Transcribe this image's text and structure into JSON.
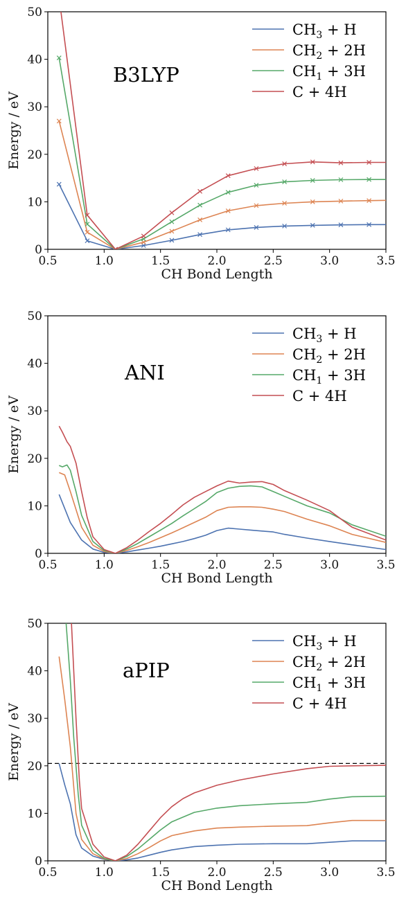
{
  "colors": {
    "blue": "#4c72b0",
    "orange": "#dd8452",
    "green": "#55a868",
    "red": "#c44e52"
  },
  "chart_data": [
    {
      "type": "line",
      "title": "B3LYP",
      "xlabel": "CH Bond Length",
      "ylabel": "Energy / eV",
      "xlim": [
        0.5,
        3.5
      ],
      "ylim": [
        0,
        50
      ],
      "xticks": [
        "0.5",
        "1.0",
        "1.5",
        "2.0",
        "2.5",
        "3.0",
        "3.5"
      ],
      "yticks": [
        "0",
        "10",
        "20",
        "30",
        "40",
        "50"
      ],
      "legend_position": "top-right",
      "markers": "x",
      "series": [
        {
          "name": "CH3 + H",
          "color": "#4c72b0",
          "x": [
            0.6,
            0.85,
            1.1,
            1.35,
            1.6,
            1.85,
            2.1,
            2.35,
            2.6,
            2.85,
            3.1,
            3.35,
            3.5
          ],
          "y": [
            13.7,
            1.8,
            0,
            0.8,
            1.9,
            3.1,
            4.1,
            4.6,
            4.9,
            5.05,
            5.15,
            5.2,
            5.2
          ]
        },
        {
          "name": "CH2 + 2H",
          "color": "#dd8452",
          "x": [
            0.6,
            0.85,
            1.1,
            1.35,
            1.6,
            1.85,
            2.1,
            2.35,
            2.6,
            2.85,
            3.1,
            3.35,
            3.5
          ],
          "y": [
            27.0,
            3.6,
            0,
            1.5,
            3.8,
            6.2,
            8.1,
            9.2,
            9.7,
            10.0,
            10.15,
            10.25,
            10.3
          ]
        },
        {
          "name": "CH1 + 3H",
          "color": "#55a868",
          "x": [
            0.6,
            0.85,
            1.1,
            1.35,
            1.6,
            1.85,
            2.1,
            2.35,
            2.6,
            2.85,
            3.1,
            3.35,
            3.5
          ],
          "y": [
            40.3,
            5.3,
            0,
            2.2,
            5.8,
            9.3,
            12.0,
            13.5,
            14.2,
            14.5,
            14.65,
            14.7,
            14.7
          ]
        },
        {
          "name": "C + 4H",
          "color": "#c44e52",
          "x": [
            0.6,
            0.85,
            1.1,
            1.35,
            1.6,
            1.85,
            2.1,
            2.35,
            2.6,
            2.85,
            3.1,
            3.35,
            3.5
          ],
          "y": [
            53.0,
            7.2,
            0,
            2.8,
            7.7,
            12.2,
            15.5,
            17.0,
            18.0,
            18.4,
            18.2,
            18.3,
            18.3
          ]
        }
      ]
    },
    {
      "type": "line",
      "title": "ANI",
      "xlabel": "CH Bond Length",
      "ylabel": "Energy / eV",
      "xlim": [
        0.5,
        3.5
      ],
      "ylim": [
        0,
        50
      ],
      "xticks": [
        "0.5",
        "1.0",
        "1.5",
        "2.0",
        "2.5",
        "3.0",
        "3.5"
      ],
      "yticks": [
        "0",
        "10",
        "20",
        "30",
        "40",
        "50"
      ],
      "legend_position": "top-right",
      "series": [
        {
          "name": "CH3 + H",
          "color": "#4c72b0",
          "x": [
            0.6,
            0.7,
            0.8,
            0.9,
            1.0,
            1.1,
            1.2,
            1.3,
            1.4,
            1.5,
            1.6,
            1.7,
            1.8,
            1.9,
            2.0,
            2.1,
            2.2,
            2.3,
            2.4,
            2.5,
            2.6,
            2.8,
            3.0,
            3.2,
            3.5
          ],
          "y": [
            12.4,
            6.5,
            2.8,
            0.9,
            0.2,
            0,
            0.3,
            0.7,
            1.1,
            1.5,
            2.0,
            2.5,
            3.1,
            3.8,
            4.8,
            5.3,
            5.1,
            4.9,
            4.7,
            4.5,
            4.0,
            3.2,
            2.5,
            1.8,
            0.8
          ]
        },
        {
          "name": "CH2 + 2H",
          "color": "#dd8452",
          "x": [
            0.6,
            0.65,
            0.7,
            0.8,
            0.9,
            1.0,
            1.1,
            1.2,
            1.3,
            1.4,
            1.5,
            1.6,
            1.7,
            1.8,
            1.9,
            2.0,
            2.1,
            2.2,
            2.3,
            2.4,
            2.5,
            2.6,
            2.8,
            3.0,
            3.2,
            3.5
          ],
          "y": [
            17.0,
            16.5,
            13.0,
            5.5,
            1.7,
            0.4,
            0,
            0.6,
            1.4,
            2.3,
            3.3,
            4.3,
            5.4,
            6.5,
            7.6,
            9.0,
            9.7,
            9.8,
            9.8,
            9.7,
            9.3,
            8.8,
            7.2,
            5.8,
            4.0,
            2.3
          ]
        },
        {
          "name": "CH1 + 3H",
          "color": "#55a868",
          "x": [
            0.6,
            0.63,
            0.67,
            0.7,
            0.75,
            0.8,
            0.9,
            1.0,
            1.1,
            1.2,
            1.3,
            1.4,
            1.5,
            1.6,
            1.7,
            1.8,
            1.9,
            2.0,
            2.1,
            2.2,
            2.3,
            2.4,
            2.5,
            2.6,
            2.8,
            3.0,
            3.2,
            3.5
          ],
          "y": [
            18.5,
            18.2,
            18.6,
            17.5,
            13.0,
            8.0,
            2.5,
            0.6,
            0,
            0.9,
            2.1,
            3.5,
            4.9,
            6.3,
            7.9,
            9.4,
            10.9,
            12.8,
            13.7,
            14.1,
            14.2,
            14.0,
            13.0,
            12.0,
            10.0,
            8.5,
            6.0,
            3.6
          ]
        },
        {
          "name": "C + 4H",
          "color": "#c44e52",
          "x": [
            0.6,
            0.63,
            0.67,
            0.7,
            0.75,
            0.8,
            0.85,
            0.9,
            1.0,
            1.1,
            1.2,
            1.3,
            1.4,
            1.5,
            1.6,
            1.7,
            1.8,
            1.9,
            2.0,
            2.1,
            2.2,
            2.3,
            2.4,
            2.5,
            2.6,
            2.8,
            3.0,
            3.2,
            3.5
          ],
          "y": [
            26.8,
            25.5,
            23.5,
            22.5,
            19.0,
            13.0,
            7.5,
            3.5,
            0.8,
            0,
            1.2,
            2.8,
            4.6,
            6.3,
            8.2,
            10.2,
            11.8,
            13.0,
            14.2,
            15.2,
            14.8,
            15.0,
            15.1,
            14.5,
            13.2,
            11.2,
            9.0,
            5.5,
            2.8
          ]
        }
      ]
    },
    {
      "type": "line",
      "title": "aPIP",
      "xlabel": "CH Bond Length",
      "ylabel": "Energy / eV",
      "xlim": [
        0.5,
        3.5
      ],
      "ylim": [
        0,
        50
      ],
      "xticks": [
        "0.5",
        "1.0",
        "1.5",
        "2.0",
        "2.5",
        "3.0",
        "3.5"
      ],
      "yticks": [
        "0",
        "10",
        "20",
        "30",
        "40",
        "50"
      ],
      "legend_position": "top-right",
      "hline": {
        "y": 20.5,
        "style": "dashed",
        "color": "#000000"
      },
      "series": [
        {
          "name": "CH3 + H",
          "color": "#4c72b0",
          "x": [
            0.6,
            0.65,
            0.7,
            0.75,
            0.8,
            0.9,
            1.0,
            1.1,
            1.2,
            1.3,
            1.4,
            1.5,
            1.6,
            1.8,
            2.0,
            2.2,
            2.5,
            2.8,
            3.0,
            3.2,
            3.5
          ],
          "y": [
            20.5,
            16.0,
            12.0,
            5.5,
            2.7,
            1.0,
            0.3,
            0,
            0.2,
            0.6,
            1.2,
            1.8,
            2.3,
            3.0,
            3.3,
            3.5,
            3.6,
            3.6,
            3.9,
            4.2,
            4.2
          ]
        },
        {
          "name": "CH2 + 2H",
          "color": "#dd8452",
          "x": [
            0.6,
            0.65,
            0.7,
            0.75,
            0.8,
            0.9,
            1.0,
            1.1,
            1.2,
            1.3,
            1.4,
            1.5,
            1.6,
            1.8,
            2.0,
            2.2,
            2.5,
            2.8,
            3.0,
            3.2,
            3.5
          ],
          "y": [
            43.0,
            34.0,
            24.0,
            10.0,
            4.5,
            1.5,
            0.4,
            0,
            0.5,
            1.5,
            2.8,
            4.2,
            5.3,
            6.3,
            6.9,
            7.1,
            7.3,
            7.4,
            8.0,
            8.5,
            8.5
          ]
        },
        {
          "name": "CH1 + 3H",
          "color": "#55a868",
          "x": [
            0.6,
            0.65,
            0.7,
            0.73,
            0.77,
            0.8,
            0.9,
            1.0,
            1.1,
            1.2,
            1.3,
            1.4,
            1.5,
            1.6,
            1.8,
            2.0,
            2.2,
            2.5,
            2.8,
            3.0,
            3.2,
            3.5
          ],
          "y": [
            62.0,
            54.0,
            38.0,
            26.0,
            14.0,
            7.5,
            2.2,
            0.5,
            0,
            0.9,
            2.5,
            4.5,
            6.5,
            8.2,
            10.2,
            11.1,
            11.6,
            12.0,
            12.3,
            13.0,
            13.5,
            13.6
          ]
        },
        {
          "name": "C + 4H",
          "color": "#c44e52",
          "x": [
            0.7,
            0.72,
            0.75,
            0.78,
            0.8,
            0.9,
            1.0,
            1.1,
            1.2,
            1.3,
            1.4,
            1.5,
            1.6,
            1.7,
            1.8,
            2.0,
            2.2,
            2.5,
            2.8,
            3.0,
            3.2,
            3.5
          ],
          "y": [
            55.0,
            45.0,
            30.0,
            17.0,
            11.0,
            3.5,
            0.8,
            0,
            1.2,
            3.5,
            6.3,
            9.1,
            11.4,
            13.1,
            14.3,
            15.9,
            17.0,
            18.3,
            19.4,
            19.9,
            20.0,
            20.1
          ]
        }
      ]
    }
  ]
}
